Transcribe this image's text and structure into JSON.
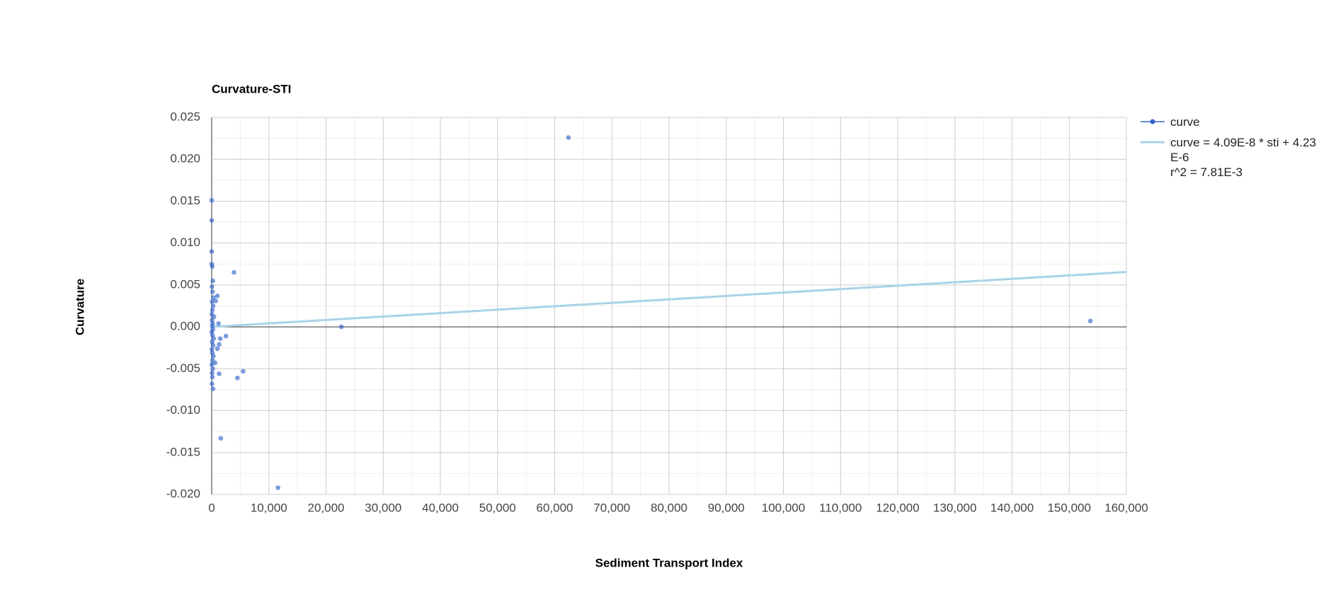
{
  "chart_data": {
    "type": "scatter",
    "title": "Curvature-STI",
    "x_label": "Sediment Transport Index",
    "y_label": "Curvature",
    "xlim": [
      0,
      160000
    ],
    "ylim": [
      -0.02,
      0.025
    ],
    "xticks": [
      0,
      {
        "value": 10000,
        "label": "10,000"
      },
      {
        "value": 20000,
        "label": "20,000"
      },
      {
        "value": 30000,
        "label": "30,000"
      },
      {
        "value": 40000,
        "label": "40,000"
      },
      {
        "value": 50000,
        "label": "50,000"
      },
      {
        "value": 60000,
        "label": "60,000"
      },
      {
        "value": 70000,
        "label": "70,000"
      },
      {
        "value": 80000,
        "label": "80,000"
      },
      {
        "value": 90000,
        "label": "90,000"
      },
      {
        "value": 100000,
        "label": "100,000"
      },
      {
        "value": 110000,
        "label": "110,000"
      },
      {
        "value": 120000,
        "label": "120,000"
      },
      {
        "value": 130000,
        "label": "130,000"
      },
      {
        "value": 140000,
        "label": "140,000"
      },
      {
        "value": 150000,
        "label": "150,000"
      },
      {
        "value": 160000,
        "label": "160,000"
      }
    ],
    "yticks": [
      {
        "value": -0.02,
        "label": "-0.020"
      },
      -0.015,
      {
        "value": -0.01,
        "label": "-0.010"
      },
      -0.005,
      {
        "value": 0,
        "label": "0.000"
      },
      0.005,
      {
        "value": 0.01,
        "label": "0.010"
      },
      0.015,
      {
        "value": 0.02,
        "label": "0.020"
      },
      0.025
    ],
    "grid": true,
    "legend": "right",
    "series": [
      {
        "name": "curve",
        "type": "scatter",
        "color": "#3366cc",
        "x": [
          62400,
          153700,
          22700,
          11600,
          1600,
          3900,
          5500,
          4500,
          1300,
          2500,
          1200,
          1000,
          700,
          1500,
          1300,
          1000,
          600,
          0,
          0,
          0,
          0,
          100,
          200,
          50,
          150,
          300,
          80,
          250,
          120,
          30,
          400,
          60,
          180,
          90,
          220,
          20,
          140,
          350,
          70,
          260,
          40,
          110,
          300,
          160,
          10,
          200,
          80,
          130,
          60,
          240
        ],
        "values": [
          0.0226,
          0.0007,
          0.0,
          -0.0192,
          -0.0133,
          0.0065,
          -0.0053,
          -0.0061,
          -0.0056,
          -0.0011,
          0.0004,
          0.0037,
          0.0031,
          -0.0014,
          -0.0021,
          -0.0026,
          -0.0043,
          0.0151,
          0.0127,
          0.009,
          0.0075,
          0.0072,
          0.0055,
          0.0048,
          0.0042,
          0.0035,
          0.003,
          0.0025,
          0.002,
          0.0015,
          0.0012,
          0.0008,
          0.0004,
          0.0001,
          -0.0003,
          -0.0006,
          -0.001,
          -0.0014,
          -0.0018,
          -0.0022,
          -0.0027,
          -0.0031,
          -0.0035,
          -0.004,
          -0.0045,
          -0.005,
          -0.0055,
          -0.006,
          -0.0068,
          -0.0074
        ]
      },
      {
        "name": "curve = 4.09E-8 * sti + 4.23E-6",
        "type": "line",
        "color": "#a8d4e6",
        "x": [
          0,
          160000
        ],
        "values": [
          4.23e-06,
          0.00654823
        ]
      }
    ],
    "r2_label": "r^2 = 7.81E-3"
  }
}
